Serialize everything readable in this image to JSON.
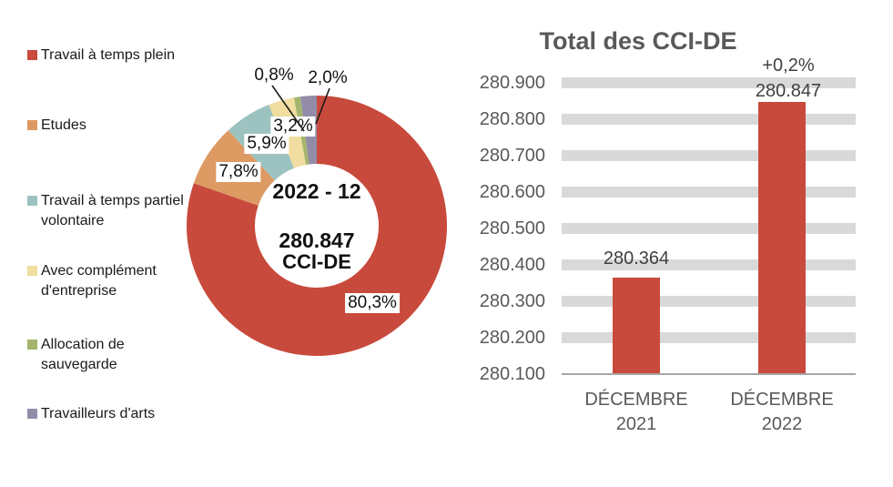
{
  "chart_data": [
    {
      "type": "pie",
      "subtype": "donut",
      "title": "",
      "center_text": [
        "2022 - 12",
        "280.847",
        "CCI-DE"
      ],
      "labels": [
        "Travail à temps plein",
        "Etudes",
        "Travail à temps partiel volontaire",
        "Avec complément d'entreprise",
        "Allocation de sauvegarde",
        "Travailleurs d'arts"
      ],
      "values": [
        80.3,
        7.8,
        5.9,
        3.2,
        0.8,
        2.0
      ],
      "value_labels": [
        "80,3%",
        "7,8%",
        "5,9%",
        "3,2%",
        "0,8%",
        "2,0%"
      ],
      "colors": [
        "#C84A3C",
        "#DD9A62",
        "#9DC3C1",
        "#F0DD9F",
        "#A4B56E",
        "#938CA9"
      ],
      "legend_position": "left",
      "start_angle_deg": 0,
      "direction": "clockwise"
    },
    {
      "type": "bar",
      "title": "Total des CCI-DE",
      "categories": [
        "DÉCEMBRE 2021",
        "DÉCEMBRE 2022"
      ],
      "values": [
        280364,
        280847
      ],
      "value_labels": [
        "280.364",
        "280.847"
      ],
      "annotations": [
        "",
        "+0,2%"
      ],
      "y_ticks": [
        "280.900",
        "280.800",
        "280.700",
        "280.600",
        "280.500",
        "280.400",
        "280.300",
        "280.200",
        "280.100"
      ],
      "ylim": [
        280100,
        280900
      ],
      "grid": true,
      "bar_color": "#C84A3C",
      "gridband_color": "#D9D9D9",
      "axis_color": "#A6A6A6",
      "text_color": "#595959",
      "value_text_color": "#404040"
    }
  ]
}
